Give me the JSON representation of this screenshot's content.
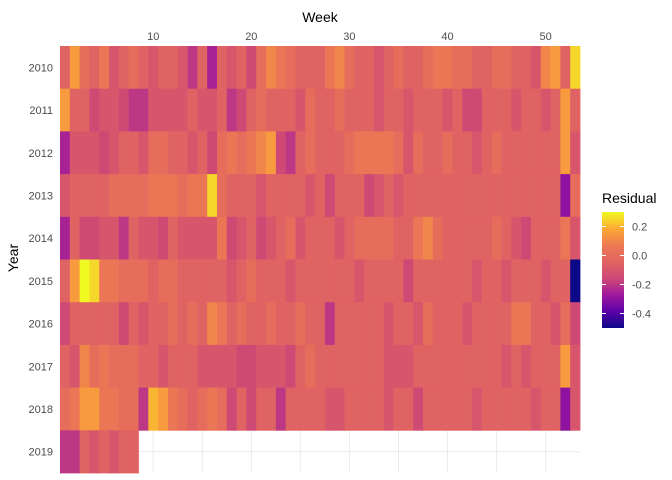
{
  "chart_data": {
    "type": "heatmap",
    "title": "",
    "xlabel": "Week",
    "ylabel": "Year",
    "x_axis_position": "top",
    "x_ticks": [
      10,
      20,
      30,
      40,
      50
    ],
    "xlim": [
      0.5,
      53.5
    ],
    "years": [
      "2010",
      "2011",
      "2012",
      "2013",
      "2014",
      "2015",
      "2016",
      "2017",
      "2018",
      "2019"
    ],
    "legend": {
      "title": "Residual",
      "ticks": [
        0.2,
        0.0,
        -0.2,
        -0.4
      ],
      "tick_labels": [
        "0.2",
        "0.0",
        "-0.2",
        "-0.4"
      ],
      "range": [
        -0.5,
        0.3
      ],
      "placement": "right",
      "colormap": "plasma"
    },
    "grid": true,
    "rows": [
      {
        "year": "2010",
        "values": [
          -0.05,
          0.15,
          0.0,
          -0.05,
          0.05,
          -0.1,
          -0.05,
          0.0,
          -0.05,
          -0.1,
          -0.05,
          -0.05,
          -0.1,
          -0.2,
          -0.05,
          -0.25,
          -0.05,
          -0.1,
          -0.05,
          -0.15,
          0.0,
          0.1,
          0.05,
          0.0,
          -0.05,
          -0.05,
          -0.05,
          0.05,
          0.1,
          0.0,
          -0.05,
          -0.05,
          -0.1,
          -0.05,
          0.0,
          -0.05,
          -0.05,
          0.0,
          0.05,
          0.05,
          0.0,
          0.0,
          -0.05,
          -0.05,
          0.0,
          0.0,
          -0.05,
          -0.05,
          -0.1,
          0.1,
          0.15,
          -0.05,
          0.25
        ]
      },
      {
        "year": "2011",
        "values": [
          0.15,
          -0.05,
          -0.05,
          -0.15,
          -0.1,
          -0.1,
          -0.15,
          -0.2,
          -0.2,
          -0.1,
          -0.1,
          -0.1,
          -0.1,
          -0.05,
          -0.1,
          -0.1,
          -0.05,
          -0.2,
          -0.15,
          -0.05,
          0.0,
          -0.05,
          -0.05,
          -0.05,
          -0.1,
          0.0,
          -0.05,
          -0.05,
          0.0,
          -0.05,
          -0.05,
          -0.05,
          -0.1,
          -0.05,
          -0.05,
          -0.1,
          -0.05,
          -0.05,
          -0.05,
          -0.1,
          -0.05,
          -0.15,
          -0.15,
          -0.05,
          -0.05,
          -0.05,
          -0.1,
          -0.05,
          -0.05,
          -0.1,
          -0.05,
          0.15,
          -0.05
        ]
      },
      {
        "year": "2012",
        "values": [
          -0.25,
          -0.1,
          -0.1,
          -0.1,
          -0.15,
          -0.1,
          -0.05,
          -0.05,
          -0.1,
          0.0,
          0.0,
          -0.05,
          -0.05,
          -0.1,
          -0.05,
          -0.15,
          0.0,
          0.05,
          0.0,
          0.05,
          0.1,
          0.15,
          -0.15,
          -0.2,
          -0.05,
          0.0,
          -0.05,
          -0.05,
          -0.05,
          0.0,
          0.05,
          0.05,
          0.05,
          0.05,
          0.0,
          -0.1,
          0.0,
          -0.05,
          -0.05,
          0.0,
          -0.05,
          -0.05,
          -0.1,
          -0.05,
          0.0,
          -0.05,
          -0.05,
          -0.05,
          -0.05,
          -0.05,
          -0.05,
          0.15,
          -0.1
        ]
      },
      {
        "year": "2013",
        "values": [
          -0.1,
          -0.05,
          -0.05,
          -0.05,
          -0.05,
          0.0,
          0.0,
          0.0,
          0.0,
          0.05,
          0.05,
          0.05,
          0.0,
          0.05,
          0.05,
          0.25,
          0.0,
          -0.05,
          -0.05,
          -0.05,
          -0.1,
          -0.05,
          -0.05,
          -0.05,
          -0.05,
          -0.1,
          -0.05,
          -0.15,
          -0.05,
          -0.05,
          -0.05,
          -0.15,
          -0.1,
          -0.05,
          -0.1,
          -0.05,
          -0.05,
          -0.05,
          -0.05,
          -0.05,
          -0.05,
          -0.05,
          -0.05,
          -0.05,
          -0.05,
          -0.05,
          -0.05,
          -0.05,
          -0.05,
          -0.05,
          -0.05,
          -0.3,
          0.0
        ]
      },
      {
        "year": "2014",
        "values": [
          -0.25,
          -0.05,
          -0.15,
          -0.15,
          -0.1,
          -0.1,
          -0.2,
          -0.05,
          -0.1,
          -0.1,
          -0.15,
          -0.05,
          -0.1,
          -0.1,
          -0.1,
          -0.1,
          0.05,
          -0.15,
          -0.1,
          -0.05,
          -0.15,
          -0.1,
          -0.05,
          0.0,
          -0.1,
          -0.05,
          -0.05,
          -0.05,
          -0.1,
          -0.05,
          0.0,
          0.0,
          0.0,
          0.0,
          -0.05,
          -0.05,
          0.05,
          0.1,
          0.0,
          -0.05,
          -0.05,
          -0.05,
          -0.05,
          -0.05,
          0.0,
          -0.05,
          -0.1,
          -0.15,
          -0.05,
          -0.05,
          -0.05,
          0.05,
          -0.1
        ]
      },
      {
        "year": "2015",
        "values": [
          -0.05,
          0.15,
          0.3,
          0.25,
          0.05,
          0.05,
          0.0,
          0.0,
          0.0,
          -0.05,
          0.0,
          0.0,
          -0.05,
          -0.05,
          -0.05,
          -0.05,
          -0.05,
          -0.1,
          -0.05,
          0.0,
          -0.05,
          -0.05,
          -0.05,
          -0.1,
          -0.05,
          -0.05,
          -0.05,
          -0.05,
          -0.05,
          -0.05,
          -0.1,
          -0.05,
          -0.05,
          -0.05,
          -0.05,
          -0.15,
          -0.05,
          -0.05,
          -0.05,
          -0.05,
          -0.05,
          -0.05,
          -0.1,
          -0.05,
          -0.05,
          -0.1,
          -0.05,
          -0.05,
          -0.05,
          -0.1,
          -0.05,
          -0.05,
          -0.5
        ]
      },
      {
        "year": "2016",
        "values": [
          -0.15,
          -0.05,
          -0.05,
          -0.05,
          -0.05,
          -0.05,
          -0.15,
          -0.05,
          -0.1,
          -0.05,
          -0.05,
          0.0,
          -0.05,
          0.0,
          -0.05,
          0.1,
          0.05,
          -0.05,
          0.0,
          -0.05,
          -0.05,
          0.0,
          -0.05,
          -0.05,
          0.0,
          -0.05,
          -0.05,
          -0.2,
          -0.05,
          -0.05,
          -0.05,
          -0.05,
          -0.05,
          -0.1,
          -0.05,
          -0.05,
          -0.1,
          0.0,
          -0.05,
          -0.05,
          -0.05,
          -0.1,
          -0.05,
          -0.05,
          -0.05,
          -0.05,
          0.05,
          0.05,
          -0.05,
          -0.05,
          -0.1,
          0.0,
          -0.15
        ]
      },
      {
        "year": "2017",
        "values": [
          -0.05,
          -0.1,
          0.1,
          0.0,
          0.05,
          0.0,
          0.0,
          0.0,
          -0.05,
          -0.05,
          -0.1,
          -0.05,
          -0.05,
          -0.05,
          -0.1,
          -0.1,
          -0.1,
          -0.1,
          -0.15,
          -0.15,
          -0.1,
          -0.1,
          -0.1,
          -0.15,
          -0.05,
          0.0,
          -0.05,
          -0.05,
          -0.05,
          -0.05,
          -0.05,
          -0.05,
          -0.05,
          -0.1,
          -0.1,
          -0.1,
          -0.05,
          -0.05,
          -0.05,
          -0.05,
          -0.05,
          -0.05,
          -0.05,
          -0.05,
          -0.05,
          -0.1,
          -0.05,
          -0.1,
          -0.05,
          -0.05,
          -0.05,
          0.15,
          -0.1
        ]
      },
      {
        "year": "2018",
        "values": [
          0.0,
          0.05,
          0.15,
          0.15,
          0.05,
          0.05,
          0.0,
          0.0,
          -0.2,
          0.2,
          0.15,
          0.05,
          0.0,
          -0.05,
          0.0,
          0.05,
          0.0,
          -0.15,
          -0.05,
          -0.15,
          -0.05,
          -0.05,
          -0.2,
          -0.05,
          -0.05,
          -0.05,
          -0.05,
          -0.1,
          -0.1,
          -0.05,
          -0.05,
          -0.05,
          -0.05,
          -0.1,
          -0.05,
          -0.05,
          -0.15,
          -0.05,
          -0.05,
          -0.05,
          -0.05,
          -0.05,
          -0.1,
          -0.05,
          -0.05,
          -0.05,
          -0.05,
          -0.05,
          -0.1,
          -0.05,
          -0.05,
          -0.3,
          -0.1
        ]
      },
      {
        "year": "2019",
        "values": [
          -0.2,
          -0.2,
          -0.05,
          -0.1,
          -0.05,
          -0.1,
          -0.05,
          -0.05
        ]
      }
    ]
  }
}
